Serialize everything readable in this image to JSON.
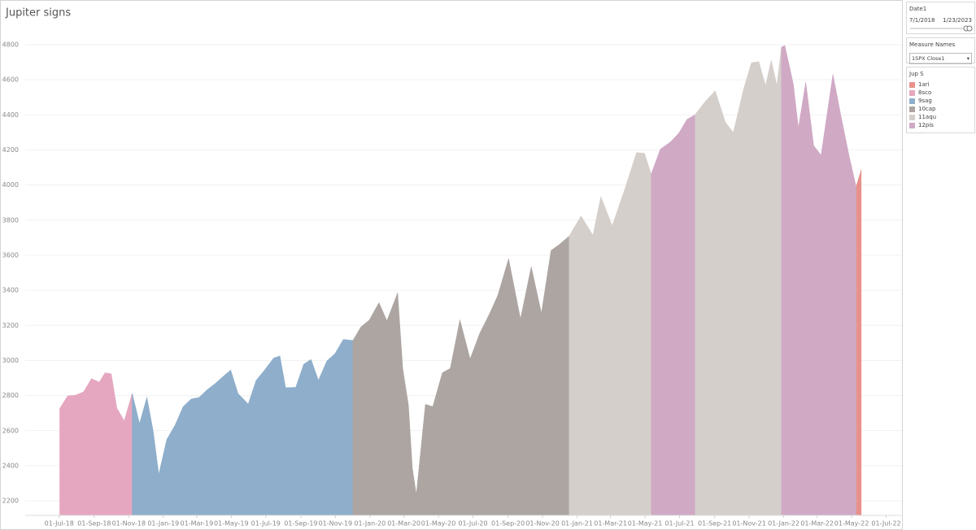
{
  "chart_data": {
    "type": "area",
    "title": "Jupiter signs",
    "x": [
      "2018-07-02",
      "2018-07-16",
      "2018-07-30",
      "2018-08-13",
      "2018-08-27",
      "2018-09-10",
      "2018-09-20",
      "2018-10-01",
      "2018-10-11",
      "2018-10-24",
      "2018-11-07",
      "2018-11-20",
      "2018-12-03",
      "2018-12-14",
      "2018-12-24",
      "2019-01-07",
      "2019-01-22",
      "2019-02-05",
      "2019-02-19",
      "2019-03-05",
      "2019-03-19",
      "2019-04-02",
      "2019-04-16",
      "2019-04-30",
      "2019-05-13",
      "2019-05-31",
      "2019-06-14",
      "2019-06-28",
      "2019-07-15",
      "2019-07-26",
      "2019-08-05",
      "2019-08-23",
      "2019-09-06",
      "2019-09-19",
      "2019-10-02",
      "2019-10-17",
      "2019-10-31",
      "2019-11-15",
      "2019-12-02",
      "2019-12-16",
      "2019-12-31",
      "2020-01-17",
      "2020-01-31",
      "2020-02-19",
      "2020-02-28",
      "2020-03-09",
      "2020-03-16",
      "2020-03-23",
      "2020-04-08",
      "2020-04-21",
      "2020-05-08",
      "2020-05-22",
      "2020-06-08",
      "2020-06-26",
      "2020-07-13",
      "2020-07-31",
      "2020-08-14",
      "2020-09-02",
      "2020-09-23",
      "2020-10-12",
      "2020-10-30",
      "2020-11-16",
      "2020-12-01",
      "2020-12-18",
      "2021-01-08",
      "2021-01-29",
      "2021-02-12",
      "2021-03-04",
      "2021-03-26",
      "2021-04-16",
      "2021-04-30",
      "2021-05-12",
      "2021-05-28",
      "2021-06-15",
      "2021-06-30",
      "2021-07-14",
      "2021-07-28",
      "2021-08-16",
      "2021-09-02",
      "2021-09-20",
      "2021-10-04",
      "2021-10-22",
      "2021-11-05",
      "2021-11-18",
      "2021-11-30",
      "2021-12-10",
      "2021-12-20",
      "2021-12-28",
      "2022-01-03",
      "2022-01-18",
      "2022-01-27",
      "2022-02-09",
      "2022-02-23",
      "2022-03-08",
      "2022-03-29",
      "2022-04-12",
      "2022-04-26",
      "2022-05-09",
      "2022-05-18"
    ],
    "series": [
      {
        "name": "1ari",
        "color": "#e8918c",
        "values": [
          null,
          null,
          null,
          null,
          null,
          null,
          null,
          null,
          null,
          null,
          null,
          null,
          null,
          null,
          null,
          null,
          null,
          null,
          null,
          null,
          null,
          null,
          null,
          null,
          null,
          null,
          null,
          null,
          null,
          null,
          null,
          null,
          null,
          null,
          null,
          null,
          null,
          null,
          null,
          null,
          null,
          null,
          null,
          null,
          null,
          null,
          null,
          null,
          null,
          null,
          null,
          null,
          null,
          null,
          null,
          null,
          null,
          null,
          null,
          null,
          null,
          null,
          null,
          null,
          null,
          null,
          null,
          null,
          null,
          null,
          null,
          null,
          null,
          null,
          null,
          null,
          null,
          null,
          null,
          null,
          null,
          null,
          null,
          null,
          null,
          null,
          null,
          null,
          null,
          null,
          null,
          null,
          null,
          null,
          null,
          null,
          null,
          3991,
          4088
        ]
      },
      {
        "name": "8sco",
        "color": "#e5a7bf",
        "values": [
          2727,
          2798,
          2802,
          2821,
          2896,
          2877,
          2930,
          2924,
          2728,
          2656,
          2813,
          null,
          null,
          null,
          null,
          null,
          null,
          null,
          null,
          null,
          null,
          null,
          null,
          null,
          null,
          null,
          null,
          null,
          null,
          null,
          null,
          null,
          null,
          null,
          null,
          null,
          null,
          null,
          null,
          null,
          null,
          null,
          null,
          null,
          null,
          null,
          null,
          null,
          null,
          null,
          null,
          null,
          null,
          null,
          null,
          null,
          null,
          null,
          null,
          null,
          null,
          null,
          null,
          null,
          null,
          null,
          null,
          null,
          null,
          null,
          null,
          null,
          null,
          null,
          null,
          null,
          null,
          null,
          null,
          null,
          null,
          null,
          null,
          null,
          null,
          null,
          null,
          null,
          null,
          null,
          null,
          null,
          null,
          null,
          null,
          null,
          null,
          null,
          null
        ]
      },
      {
        "name": "9sag",
        "color": "#8eaecb",
        "values": [
          null,
          null,
          null,
          null,
          null,
          null,
          null,
          null,
          null,
          null,
          2813,
          2641,
          2790,
          2600,
          2351,
          2549,
          2633,
          2737,
          2780,
          2789,
          2832,
          2867,
          2907,
          2946,
          2812,
          2752,
          2887,
          2942,
          3014,
          3026,
          2845,
          2847,
          2979,
          3006,
          2887,
          2998,
          3038,
          3120,
          3114,
          null,
          null,
          null,
          null,
          null,
          null,
          null,
          null,
          null,
          null,
          null,
          null,
          null,
          null,
          null,
          null,
          null,
          null,
          null,
          null,
          null,
          null,
          null,
          null,
          null,
          null,
          null,
          null,
          null,
          null,
          null,
          null,
          null,
          null,
          null,
          null,
          null,
          null,
          null,
          null,
          null,
          null,
          null,
          null,
          null,
          null,
          null,
          null,
          null,
          null,
          null,
          null,
          null,
          null,
          null,
          null,
          null,
          null,
          null,
          null
        ]
      },
      {
        "name": "10cap",
        "color": "#aca5a1",
        "values": [
          null,
          null,
          null,
          null,
          null,
          null,
          null,
          null,
          null,
          null,
          null,
          null,
          null,
          null,
          null,
          null,
          null,
          null,
          null,
          null,
          null,
          null,
          null,
          null,
          null,
          null,
          null,
          null,
          null,
          null,
          null,
          null,
          null,
          null,
          null,
          null,
          null,
          null,
          3114,
          3191,
          3231,
          3330,
          3226,
          3386,
          2954,
          2747,
          2386,
          2237,
          2750,
          2737,
          2930,
          2955,
          3232,
          3009,
          3155,
          3271,
          3372,
          3580,
          3237,
          3534,
          3270,
          3627,
          3662,
          3709,
          null,
          null,
          null,
          null,
          null,
          null,
          null,
          null,
          null,
          null,
          null,
          null,
          null,
          null,
          null,
          null,
          null,
          null,
          null,
          null,
          null,
          null,
          null,
          null,
          null,
          null,
          null,
          null,
          null,
          null,
          null,
          null,
          null,
          null,
          null
        ]
      },
      {
        "name": "11aqu",
        "color": "#d5cfcb",
        "values": [
          null,
          null,
          null,
          null,
          null,
          null,
          null,
          null,
          null,
          null,
          null,
          null,
          null,
          null,
          null,
          null,
          null,
          null,
          null,
          null,
          null,
          null,
          null,
          null,
          null,
          null,
          null,
          null,
          null,
          null,
          null,
          null,
          null,
          null,
          null,
          null,
          null,
          null,
          null,
          null,
          null,
          null,
          null,
          null,
          null,
          null,
          null,
          null,
          null,
          null,
          null,
          null,
          null,
          null,
          null,
          null,
          null,
          null,
          null,
          null,
          null,
          null,
          null,
          3709,
          3824,
          3714,
          3934,
          3768,
          3974,
          4185,
          4181,
          4063,
          null,
          null,
          null,
          null,
          4400,
          4479,
          4537,
          4358,
          4300,
          4545,
          4697,
          4704,
          4567,
          4712,
          4568,
          4786,
          null,
          null,
          null,
          null,
          null,
          null,
          null,
          null,
          null,
          null,
          null
        ]
      },
      {
        "name": "12pis",
        "color": "#d0a9c5",
        "values": [
          null,
          null,
          null,
          null,
          null,
          null,
          null,
          null,
          null,
          null,
          null,
          null,
          null,
          null,
          null,
          null,
          null,
          null,
          null,
          null,
          null,
          null,
          null,
          null,
          null,
          null,
          null,
          null,
          null,
          null,
          null,
          null,
          null,
          null,
          null,
          null,
          null,
          null,
          null,
          null,
          null,
          null,
          null,
          null,
          null,
          null,
          null,
          null,
          null,
          null,
          null,
          null,
          null,
          null,
          null,
          null,
          null,
          null,
          null,
          null,
          null,
          null,
          null,
          null,
          null,
          null,
          null,
          null,
          null,
          null,
          null,
          4063,
          4204,
          4246,
          4297,
          4374,
          4400,
          null,
          null,
          null,
          null,
          null,
          null,
          null,
          null,
          null,
          null,
          4786,
          4796,
          4577,
          4326,
          4587,
          4225,
          4170,
          4632,
          4397,
          4175,
          3991,
          null
        ]
      }
    ],
    "xlim": [
      "2018-05-02",
      "2022-07-29"
    ],
    "xticks": [
      {
        "value": "2018-07-01",
        "label": "01-Jul-18"
      },
      {
        "value": "2018-09-01",
        "label": "01-Sep-18"
      },
      {
        "value": "2018-11-01",
        "label": "01-Nov-18"
      },
      {
        "value": "2019-01-01",
        "label": "01-Jan-19"
      },
      {
        "value": "2019-03-01",
        "label": "01-Mar-19"
      },
      {
        "value": "2019-05-01",
        "label": "01-May-19"
      },
      {
        "value": "2019-07-01",
        "label": "01-Jul-19"
      },
      {
        "value": "2019-09-01",
        "label": "01-Sep-19"
      },
      {
        "value": "2019-11-01",
        "label": "01-Nov-19"
      },
      {
        "value": "2020-01-01",
        "label": "01-Jan-20"
      },
      {
        "value": "2020-03-01",
        "label": "01-Mar-20"
      },
      {
        "value": "2020-05-01",
        "label": "01-May-20"
      },
      {
        "value": "2020-07-01",
        "label": "01-Jul-20"
      },
      {
        "value": "2020-09-01",
        "label": "01-Sep-20"
      },
      {
        "value": "2020-11-01",
        "label": "01-Nov-20"
      },
      {
        "value": "2021-01-01",
        "label": "01-Jan-21"
      },
      {
        "value": "2021-03-01",
        "label": "01-Mar-21"
      },
      {
        "value": "2021-05-01",
        "label": "01-May-21"
      },
      {
        "value": "2021-07-01",
        "label": "01-Jul-21"
      },
      {
        "value": "2021-09-01",
        "label": "01-Sep-21"
      },
      {
        "value": "2021-11-01",
        "label": "01-Nov-21"
      },
      {
        "value": "2022-01-01",
        "label": "01-Jan-22"
      },
      {
        "value": "2022-03-01",
        "label": "01-Mar-22"
      },
      {
        "value": "2022-05-01",
        "label": "01-May-22"
      },
      {
        "value": "2022-07-01",
        "label": "01-Jul-22"
      }
    ],
    "ylim": [
      2117,
      4911
    ],
    "yticks": [
      2200,
      2400,
      2600,
      2800,
      3000,
      3200,
      3400,
      3600,
      3800,
      4000,
      4200,
      4400,
      4600,
      4800
    ],
    "grid": true
  },
  "date_filter": {
    "title": "Date1",
    "start": "7/1/2018",
    "end": "1/23/2023"
  },
  "measure_filter": {
    "title": "Measure Names",
    "selected": "1SPX Close1"
  },
  "legend": {
    "title": "Jup S"
  }
}
